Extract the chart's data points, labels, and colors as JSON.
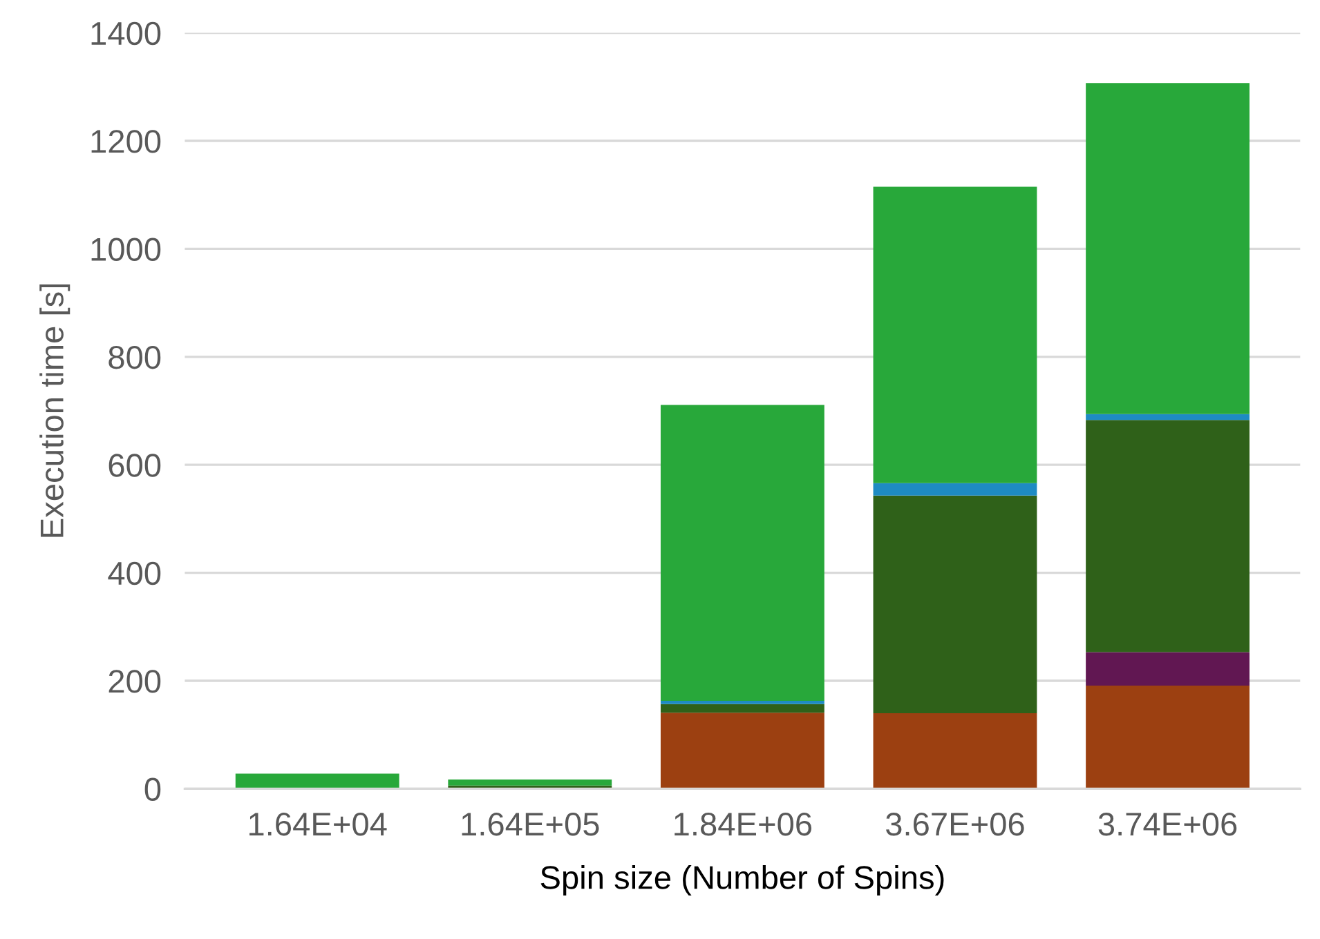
{
  "chart_data": {
    "type": "bar",
    "stacked": true,
    "xlabel": "Spin size (Number of Spins)",
    "ylabel": "Execution time [s]",
    "categories": [
      "1.64E+04",
      "1.64E+05",
      "1.84E+06",
      "3.67E+06",
      "3.74E+06"
    ],
    "series": [
      {
        "color": "#9c4011",
        "values": [
          1,
          1,
          141,
          140,
          191
        ]
      },
      {
        "color": "#611752",
        "values": [
          0,
          0,
          0,
          0,
          62
        ]
      },
      {
        "color": "#2f6119",
        "values": [
          0,
          5,
          16,
          403,
          430
        ]
      },
      {
        "color": "#1e8bc3",
        "values": [
          0,
          0,
          6,
          23,
          11
        ]
      },
      {
        "color": "#28a83a",
        "values": [
          27,
          11,
          548,
          549,
          613
        ]
      }
    ],
    "ylim": [
      0,
      1400
    ],
    "yticks": [
      0,
      200,
      400,
      600,
      800,
      1000,
      1200,
      1400
    ],
    "grid": "y",
    "legend": false
  }
}
